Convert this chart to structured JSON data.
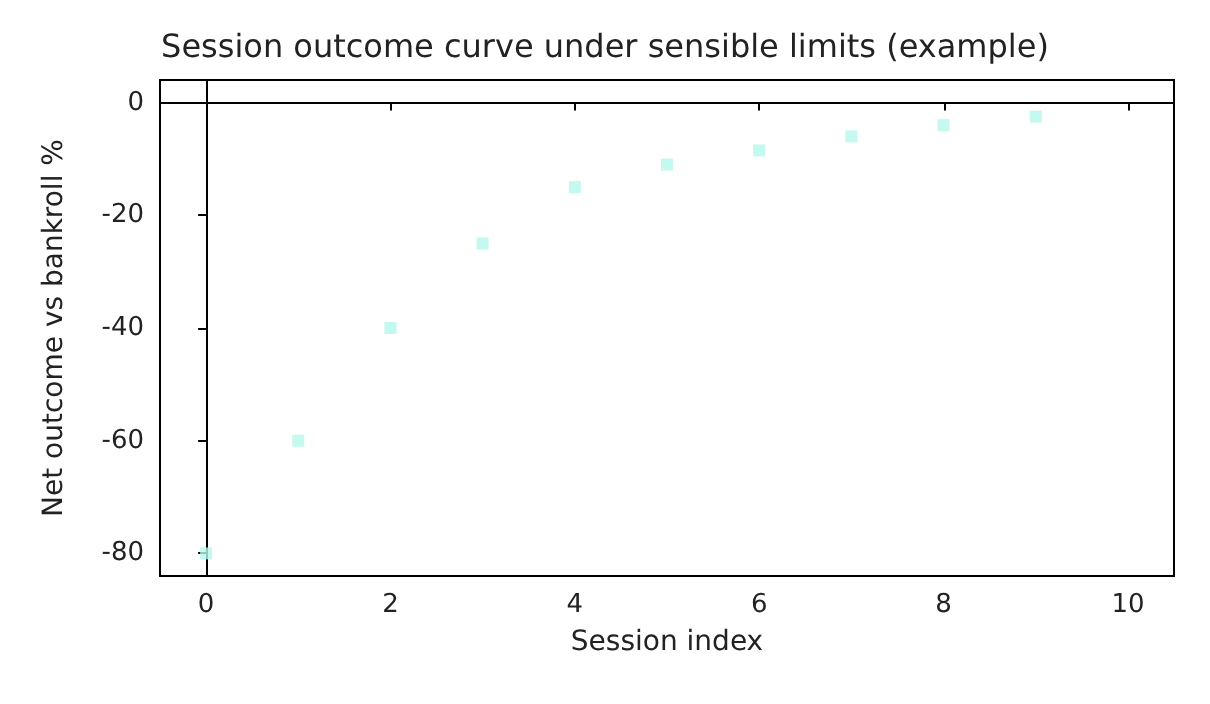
{
  "chart_data": {
    "type": "scatter",
    "title": "Session outcome curve under sensible limits (example)",
    "xlabel": "Session index",
    "ylabel": "Net outcome vs bankroll %",
    "x": [
      0,
      1,
      2,
      3,
      4,
      5,
      6,
      7,
      8,
      9
    ],
    "series": [
      {
        "color": "#b4f8ea",
        "values": [
          -80,
          -60,
          -40,
          -25,
          -15,
          -11,
          -8.5,
          -6,
          -4,
          -2.5
        ]
      }
    ],
    "xlim": [
      -0.5,
      10.5
    ],
    "xticks": [
      0,
      2,
      4,
      6,
      8,
      10
    ],
    "ylim": [
      -84,
      4
    ],
    "yticks": [
      -80,
      -60,
      -40,
      -20,
      0
    ],
    "marker": "square"
  }
}
